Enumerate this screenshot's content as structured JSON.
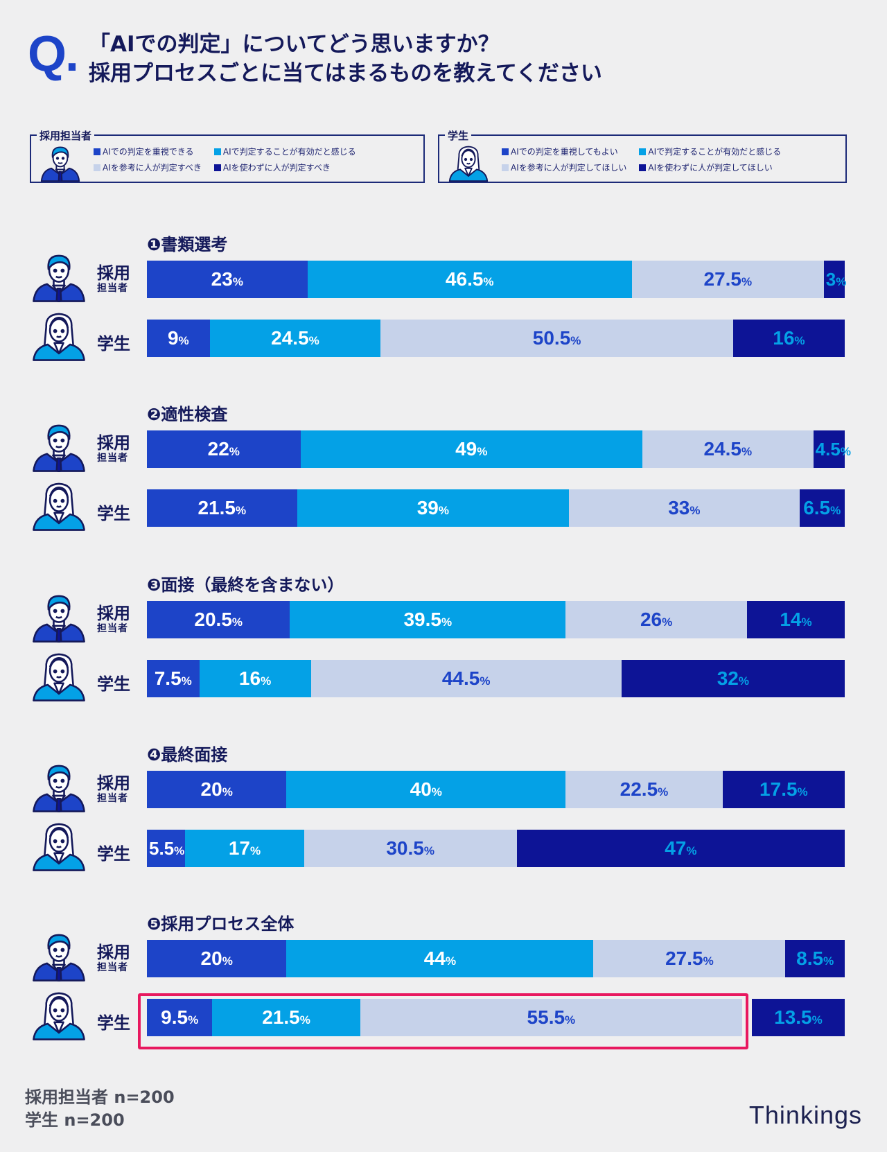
{
  "question": {
    "mark": "Q.",
    "line1": "「AIでの判定」についてどう思いますか？",
    "line2": "採用プロセスごとに当てはまるものを教えてください"
  },
  "colors": {
    "c1": "#1d44c8",
    "c2": "#04a1e6",
    "c3": "#c6d2ea",
    "c4": "#0d1496",
    "highlight": "#e8185f"
  },
  "legends": {
    "recruiter": {
      "title": "採用担当者",
      "items": [
        "AIでの判定を重視できる",
        "AIで判定することが有効だと感じる",
        "AIを参考に人が判定すべき",
        "AIを使わずに人が判定すべき"
      ]
    },
    "student": {
      "title": "学生",
      "items": [
        "AIでの判定を重視してもよい",
        "AIで判定することが有効だと感じる",
        "AIを参考に人が判定してほしい",
        "AIを使わずに人が判定してほしい"
      ]
    }
  },
  "row_labels": {
    "recruiter_main": "採用",
    "recruiter_sub": "担当者",
    "student_main": "学生"
  },
  "chart_data": {
    "type": "bar",
    "orientation": "horizontal",
    "stacked": true,
    "unit": "%",
    "series_order": [
      "c1",
      "c2",
      "c3",
      "c4"
    ],
    "groups": [
      {
        "title": "❶書類選考",
        "rows": [
          {
            "respondent": "recruiter",
            "values": [
              23,
              46.5,
              27.5,
              3
            ]
          },
          {
            "respondent": "student",
            "values": [
              9,
              24.5,
              50.5,
              16
            ]
          }
        ]
      },
      {
        "title": "❷適性検査",
        "rows": [
          {
            "respondent": "recruiter",
            "values": [
              22,
              49,
              24.5,
              4.5
            ]
          },
          {
            "respondent": "student",
            "values": [
              21.5,
              39,
              33,
              6.5
            ]
          }
        ]
      },
      {
        "title": "❸面接（最終を含まない）",
        "rows": [
          {
            "respondent": "recruiter",
            "values": [
              20.5,
              39.5,
              26,
              14
            ]
          },
          {
            "respondent": "student",
            "values": [
              7.5,
              16,
              44.5,
              32
            ]
          }
        ]
      },
      {
        "title": "❹最終面接",
        "rows": [
          {
            "respondent": "recruiter",
            "values": [
              20,
              40,
              22.5,
              17.5
            ]
          },
          {
            "respondent": "student",
            "values": [
              5.5,
              17,
              30.5,
              47
            ]
          }
        ]
      },
      {
        "title": "❺採用プロセス全体",
        "rows": [
          {
            "respondent": "recruiter",
            "values": [
              20,
              44,
              27.5,
              8.5
            ]
          },
          {
            "respondent": "student",
            "values": [
              9.5,
              21.5,
              55.5,
              13.5
            ],
            "highlight_first_segments": 3
          }
        ]
      }
    ]
  },
  "footer": {
    "n1": "採用担当者 n=200",
    "n2": "学生 n=200"
  },
  "brand": "Thinkings"
}
